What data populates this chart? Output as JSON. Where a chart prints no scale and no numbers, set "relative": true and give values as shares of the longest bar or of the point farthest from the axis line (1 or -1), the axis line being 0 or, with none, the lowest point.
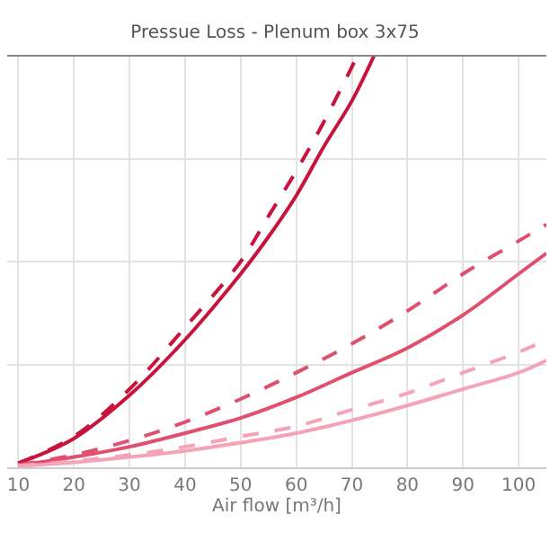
{
  "chart_data": {
    "type": "line",
    "title": "Pressue Loss - Plenum box 3x75",
    "xlabel": "Air flow [m³/h]",
    "relative": true,
    "xlim": [
      8,
      105
    ],
    "xticks": [
      10,
      20,
      30,
      40,
      50,
      60,
      70,
      80,
      90,
      100
    ],
    "grid": true,
    "marker": "none",
    "series": [
      {
        "color": "#c8143c",
        "line_style": "solid",
        "x": [
          10,
          20,
          30,
          40,
          50,
          55,
          60,
          65,
          70,
          74
        ],
        "values": [
          0.01,
          0.07,
          0.175,
          0.31,
          0.47,
          0.56,
          0.66,
          0.78,
          0.89,
          1.0
        ]
      },
      {
        "color": "#c8143c",
        "line_style": "dashed",
        "x": [
          10,
          20,
          30,
          40,
          50,
          55,
          60,
          65,
          71
        ],
        "values": [
          0.01,
          0.075,
          0.19,
          0.34,
          0.5,
          0.61,
          0.72,
          0.84,
          1.0
        ]
      },
      {
        "color": "#e0506e",
        "line_style": "solid",
        "x": [
          10,
          20,
          30,
          40,
          50,
          60,
          70,
          80,
          90,
          100,
          105
        ],
        "values": [
          0.005,
          0.025,
          0.05,
          0.083,
          0.12,
          0.17,
          0.23,
          0.29,
          0.37,
          0.47,
          0.52
        ]
      },
      {
        "color": "#e0506e",
        "line_style": "dashed",
        "x": [
          10,
          20,
          30,
          40,
          50,
          60,
          70,
          80,
          90,
          100,
          105
        ],
        "values": [
          0.006,
          0.03,
          0.065,
          0.11,
          0.166,
          0.23,
          0.3,
          0.38,
          0.47,
          0.55,
          0.59
        ]
      },
      {
        "color": "#f4a3b8",
        "line_style": "solid",
        "x": [
          10,
          20,
          30,
          40,
          50,
          60,
          70,
          80,
          90,
          100,
          105
        ],
        "values": [
          0.003,
          0.012,
          0.025,
          0.04,
          0.06,
          0.083,
          0.114,
          0.15,
          0.19,
          0.23,
          0.26
        ]
      },
      {
        "color": "#f4a3b8",
        "line_style": "dashed",
        "x": [
          10,
          20,
          30,
          40,
          50,
          60,
          70,
          80,
          90,
          100,
          105
        ],
        "values": [
          0.004,
          0.015,
          0.03,
          0.05,
          0.075,
          0.1,
          0.14,
          0.18,
          0.23,
          0.28,
          0.31
        ]
      }
    ]
  }
}
